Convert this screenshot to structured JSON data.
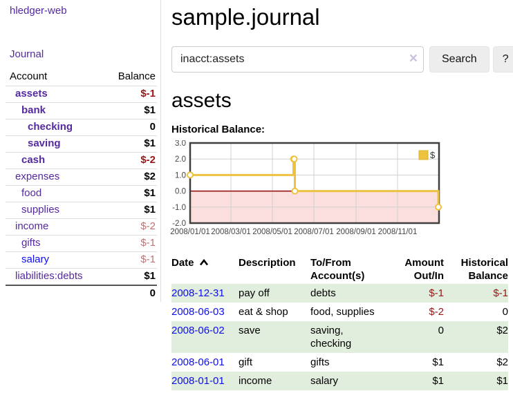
{
  "app": {
    "title": "hledger-web",
    "nav_journal": "Journal"
  },
  "sidebar": {
    "table": {
      "headers": {
        "account": "Account",
        "balance": "Balance"
      },
      "rows": [
        {
          "account": "assets",
          "indent": 1,
          "bold": true,
          "link": "purple",
          "balance": "$-1",
          "bstyle": "neg"
        },
        {
          "account": "bank",
          "indent": 2,
          "bold": true,
          "link": "purple",
          "balance": "$1",
          "bstyle": "pos"
        },
        {
          "account": "checking",
          "indent": 3,
          "bold": true,
          "link": "purple",
          "balance": "0",
          "bstyle": "pos"
        },
        {
          "account": "saving",
          "indent": 3,
          "bold": true,
          "link": "purple",
          "balance": "$1",
          "bstyle": "pos"
        },
        {
          "account": "cash",
          "indent": 2,
          "bold": true,
          "link": "purple",
          "balance": "$-2",
          "bstyle": "neg"
        },
        {
          "account": "expenses",
          "indent": 1,
          "bold": false,
          "link": "purple",
          "balance": "$2",
          "bstyle": "pos"
        },
        {
          "account": "food",
          "indent": 2,
          "bold": false,
          "link": "purple",
          "balance": "$1",
          "bstyle": "pos"
        },
        {
          "account": "supplies",
          "indent": 2,
          "bold": false,
          "link": "purple",
          "balance": "$1",
          "bstyle": "pos"
        },
        {
          "account": "income",
          "indent": 1,
          "bold": false,
          "link": "purple",
          "balance": "$-2",
          "bstyle": "negm"
        },
        {
          "account": "gifts",
          "indent": 2,
          "bold": false,
          "link": "purple",
          "balance": "$-1",
          "bstyle": "negm"
        },
        {
          "account": "salary",
          "indent": 2,
          "bold": false,
          "link": "blue",
          "balance": "$-1",
          "bstyle": "negm"
        },
        {
          "account": "liabilities:debts",
          "indent": 1,
          "bold": false,
          "link": "purple",
          "balance": "$1",
          "bstyle": "pos"
        }
      ],
      "total": "0"
    }
  },
  "header": {
    "title": "sample.journal"
  },
  "search": {
    "value": "inacct:assets",
    "clear_icon": "×",
    "button": "Search",
    "help_button": "?"
  },
  "account_page": {
    "heading": "assets",
    "chart_label": "Historical Balance:"
  },
  "chart_data": {
    "type": "line",
    "step": true,
    "series": [
      {
        "name": "$",
        "color": "#edc240",
        "points": [
          [
            "2008/01/01",
            1
          ],
          [
            "2008/06/01",
            2
          ],
          [
            "2008/06/02",
            2
          ],
          [
            "2008/06/03",
            0
          ],
          [
            "2008/12/31",
            -1
          ]
        ]
      }
    ],
    "xlim": [
      "2008/01/01",
      "2009/01/01"
    ],
    "ylim": [
      -2,
      3
    ],
    "yticks": [
      "3.0",
      "2.0",
      "1.0",
      "0.0",
      "-1.0",
      "-2.0"
    ],
    "xticks": [
      "2008/01/01",
      "2008/03/01",
      "2008/05/01",
      "2008/07/01",
      "2008/09/01",
      "2008/11/01"
    ],
    "legend": {
      "label": "$",
      "position": "top-right"
    },
    "grid": true,
    "colors": {
      "negative_region_fill": "#fbdede",
      "zero_line": "#8b0000",
      "gridline": "#d0d0d0",
      "border": "#3f3f3f",
      "tick_label": "#444444"
    }
  },
  "register": {
    "headers": [
      {
        "line1": "Date",
        "line2": "",
        "sort": "asc"
      },
      {
        "line1": "Description",
        "line2": ""
      },
      {
        "line1": "To/From",
        "line2": "Account(s)"
      },
      {
        "line1": "Amount",
        "line2": "Out/In"
      },
      {
        "line1": "Historical",
        "line2": "Balance"
      }
    ],
    "rows": [
      {
        "date": "2008-12-31",
        "description": "pay off",
        "accounts": "debts",
        "amount": "$-1",
        "amount_neg": true,
        "balance": "$-1",
        "balance_neg": true,
        "shaded": true
      },
      {
        "date": "2008-06-03",
        "description": "eat & shop",
        "accounts": "food, supplies",
        "amount": "$-2",
        "amount_neg": true,
        "balance": "0",
        "balance_neg": false,
        "shaded": false
      },
      {
        "date": "2008-06-02",
        "description": "save",
        "accounts": "saving, checking",
        "amount": "0",
        "amount_neg": false,
        "balance": "$2",
        "balance_neg": false,
        "shaded": true
      },
      {
        "date": "2008-06-01",
        "description": "gift",
        "accounts": "gifts",
        "amount": "$1",
        "amount_neg": false,
        "balance": "$2",
        "balance_neg": false,
        "shaded": false
      },
      {
        "date": "2008-01-01",
        "description": "income",
        "accounts": "salary",
        "amount": "$1",
        "amount_neg": false,
        "balance": "$1",
        "balance_neg": false,
        "shaded": true
      }
    ]
  }
}
